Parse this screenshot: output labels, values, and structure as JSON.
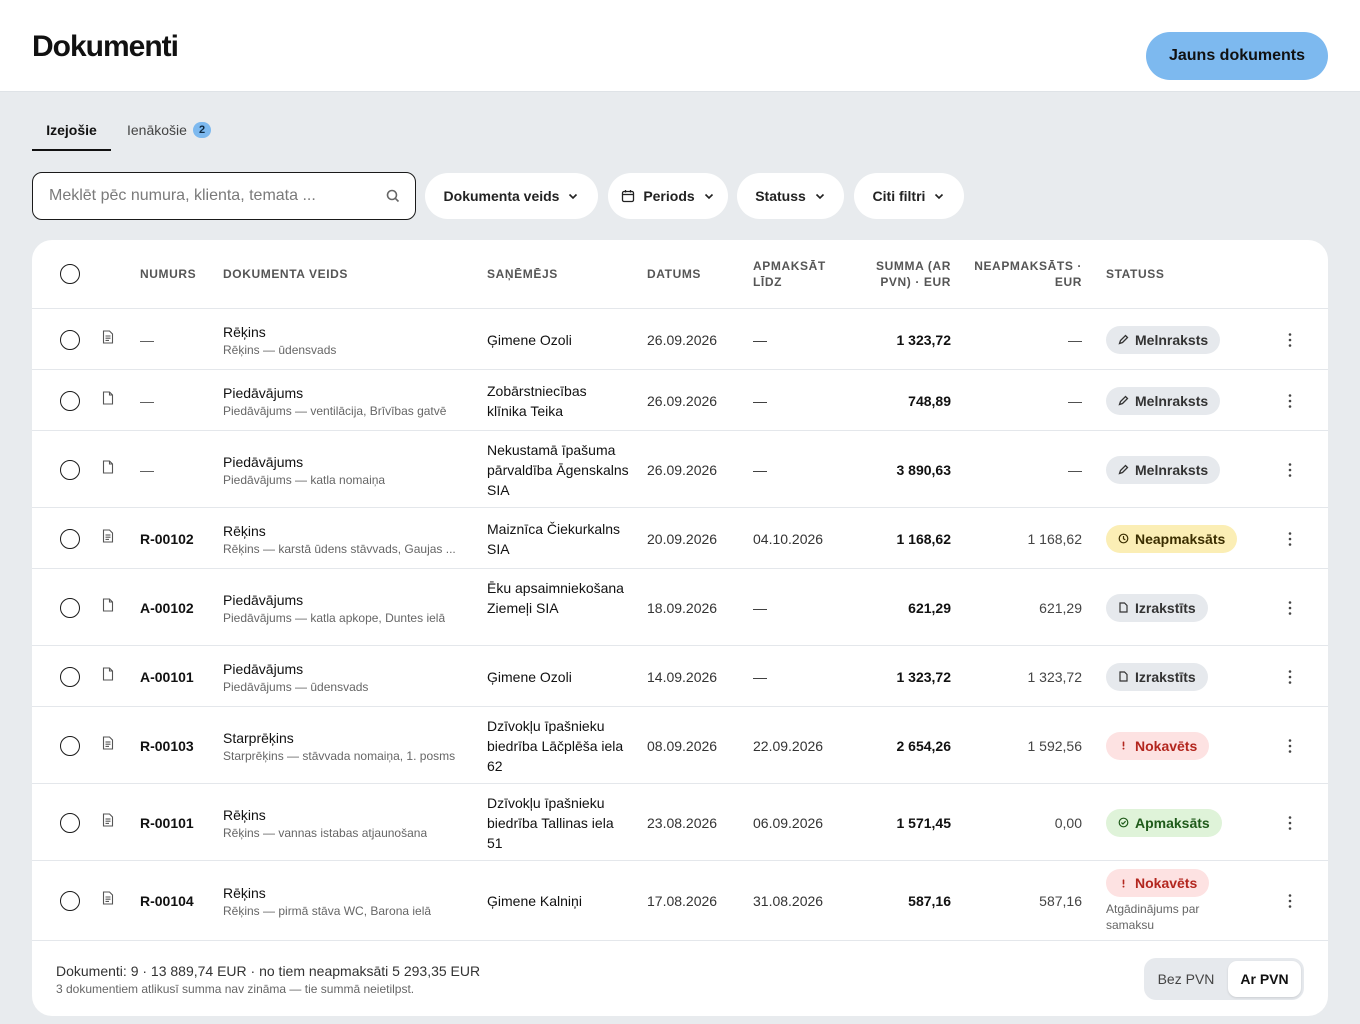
{
  "header": {
    "title": "Dokumenti",
    "new_button": "Jauns dokuments"
  },
  "tabs": [
    {
      "label": "Izejošie",
      "active": true
    },
    {
      "label": "Ienākošie",
      "badge": "2",
      "active": false
    }
  ],
  "search": {
    "placeholder": "Meklēt pēc numura, klienta, temata ...",
    "value": ""
  },
  "filters": [
    {
      "label": "Dokumenta veids",
      "icon": "chevron-down-icon"
    },
    {
      "label": "Periods",
      "icon": "calendar-icon"
    },
    {
      "label": "Statuss",
      "icon": "chevron-down-icon"
    },
    {
      "label": "Citi filtri",
      "icon": "chevron-down-icon"
    }
  ],
  "table": {
    "columns": {
      "number": "Numurs",
      "doc_type": "Dokumenta veids",
      "recipient": "Saņēmējs",
      "date": "Datums",
      "due_line1": "Apmaksāt",
      "due_line2": "līdz",
      "sum_line1": "Summa (ar",
      "sum_line2": "PVN) · EUR",
      "unpaid_line1": "Neapmaksāts ·",
      "unpaid_line2": "EUR",
      "status": "Statuss"
    },
    "rows": [
      {
        "icon": "invoice-icon",
        "number": "—",
        "type": "Rēķins",
        "subject": "Rēķins — ūdensvads",
        "recipient": "Ģimene Ozoli",
        "date": "26.09.2026",
        "due": "—",
        "sum": "1 323,72",
        "unpaid": "—",
        "status": "Melnraksts",
        "status_kind": "draft"
      },
      {
        "icon": "document-icon",
        "number": "—",
        "type": "Piedāvājums",
        "subject": "Piedāvājums — ventilācija, Brīvības gatvē",
        "recipient": "Zobārstniecības klīnika Teika",
        "date": "26.09.2026",
        "due": "—",
        "sum": "748,89",
        "unpaid": "—",
        "status": "Melnraksts",
        "status_kind": "draft"
      },
      {
        "icon": "document-icon",
        "number": "—",
        "type": "Piedāvājums",
        "subject": "Piedāvājums — katla nomaiņa",
        "recipient": "Nekustamā īpašuma pārvaldība Āgenskalns SIA",
        "date": "26.09.2026",
        "due": "—",
        "sum": "3 890,63",
        "unpaid": "—",
        "status": "Melnraksts",
        "status_kind": "draft"
      },
      {
        "icon": "invoice-icon",
        "number": "R-00102",
        "type": "Rēķins",
        "subject": "Rēķins — karstā ūdens stāvvads, Gaujas ...",
        "recipient": "Maiznīca Čiekurkalns SIA",
        "date": "20.09.2026",
        "due": "04.10.2026",
        "sum": "1 168,62",
        "unpaid": "1 168,62",
        "status": "Neapmaksāts",
        "status_kind": "unpaid"
      },
      {
        "icon": "document-icon",
        "number": "A-00102",
        "type": "Piedāvājums",
        "subject": "Piedāvājums — katla apkope, Duntes ielā",
        "recipient": "Ēku apsaimniekošana Ziemeļi SIA",
        "date": "18.09.2026",
        "due": "—",
        "sum": "621,29",
        "unpaid": "621,29",
        "status": "Izrakstīts",
        "status_kind": "issued"
      },
      {
        "icon": "document-icon",
        "number": "A-00101",
        "type": "Piedāvājums",
        "subject": "Piedāvājums — ūdensvads",
        "recipient": "Ģimene Ozoli",
        "date": "14.09.2026",
        "due": "—",
        "sum": "1 323,72",
        "unpaid": "1 323,72",
        "status": "Izrakstīts",
        "status_kind": "issued"
      },
      {
        "icon": "invoice-icon",
        "number": "R-00103",
        "type": "Starprēķins",
        "subject": "Starprēķins — stāvvada nomaiņa, 1. posms",
        "recipient": "Dzīvokļu īpašnieku biedrība Lāčplēša iela 62",
        "date": "08.09.2026",
        "due": "22.09.2026",
        "sum": "2 654,26",
        "unpaid": "1 592,56",
        "status": "Nokavēts",
        "status_kind": "overdue"
      },
      {
        "icon": "invoice-icon",
        "number": "R-00101",
        "type": "Rēķins",
        "subject": "Rēķins — vannas istabas atjaunošana",
        "recipient": "Dzīvokļu īpašnieku biedrība Tallinas iela 51",
        "date": "23.08.2026",
        "due": "06.09.2026",
        "sum": "1 571,45",
        "unpaid": "0,00",
        "status": "Apmaksāts",
        "status_kind": "paid"
      },
      {
        "icon": "invoice-icon",
        "number": "R-00104",
        "type": "Rēķins",
        "subject": "Rēķins — pirmā stāva WC, Barona ielā",
        "recipient": "Ģimene Kalniņi",
        "date": "17.08.2026",
        "due": "31.08.2026",
        "sum": "587,16",
        "unpaid": "587,16",
        "status": "Nokavēts",
        "status_kind": "overdue",
        "note": "Atgādinājums par samaksu"
      }
    ]
  },
  "footer": {
    "summary": "Dokumenti: 9 · 13 889,74 EUR · no tiem neapmaksāti 5 293,35 EUR",
    "note": "3 dokumentiem atlikusī summa nav zināma — tie summā neietilpst.",
    "vat_toggle": {
      "off_label": "Bez PVN",
      "on_label": "Ar PVN",
      "selected": "Ar PVN"
    }
  },
  "colors": {
    "accent": "#7db9ef",
    "page_bg": "#e8ebee",
    "draft_badge": "#e6e9ed",
    "unpaid_badge": "#fbeeb5",
    "overdue_badge": "#fde2e2",
    "overdue_text": "#b3261e",
    "paid_badge": "#dff3d9"
  }
}
